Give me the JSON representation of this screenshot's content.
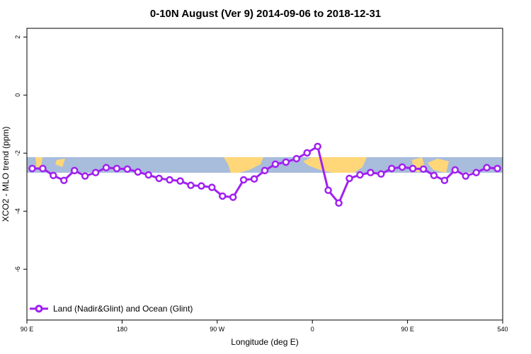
{
  "chart_data": {
    "type": "line",
    "title": "0-10N August (Ver 9)   2014-09-06 to 2018-12-31",
    "x_label": "Longitude (deg E)",
    "y_label": "XCO2 - MLO trend (ppm)",
    "x": [
      95,
      105,
      115,
      125,
      135,
      145,
      155,
      165,
      175,
      185,
      195,
      205,
      215,
      225,
      235,
      245,
      255,
      265,
      275,
      285,
      295,
      305,
      315,
      325,
      335,
      345,
      355,
      365,
      375,
      385,
      395,
      405,
      415,
      425,
      435,
      445,
      455,
      465,
      475,
      485,
      495,
      505,
      515,
      525,
      535
    ],
    "series": [
      {
        "name": "Land (Nadir&Glint) and Ocean (Glint)",
        "color": "#a020f0",
        "values": [
          -2.53,
          -2.53,
          -2.77,
          -2.94,
          -2.6,
          -2.79,
          -2.67,
          -2.5,
          -2.53,
          -2.55,
          -2.65,
          -2.75,
          -2.87,
          -2.92,
          -2.96,
          -3.11,
          -3.13,
          -3.18,
          -3.48,
          -3.52,
          -2.92,
          -2.89,
          -2.6,
          -2.38,
          -2.31,
          -2.19,
          -1.99,
          -1.77,
          -3.28,
          -3.72,
          -2.87,
          -2.75,
          -2.67,
          -2.72,
          -2.53,
          -2.48,
          -2.53,
          -2.55,
          -2.77,
          -2.94,
          -2.58,
          -2.79,
          -2.67,
          -2.5,
          -2.53
        ]
      }
    ],
    "xlim": [
      90,
      540
    ],
    "xticks": [
      {
        "value": 90,
        "label": "90 E"
      },
      180,
      {
        "value": 270,
        "label": "90 W"
      },
      {
        "value": 360,
        "label": "0"
      },
      {
        "value": 450,
        "label": "90 E"
      },
      540
    ],
    "ylim": [
      -7.75,
      2.3
    ],
    "yticks": [
      2,
      0,
      -2,
      -4,
      -6
    ],
    "legend": "bottom-left"
  }
}
